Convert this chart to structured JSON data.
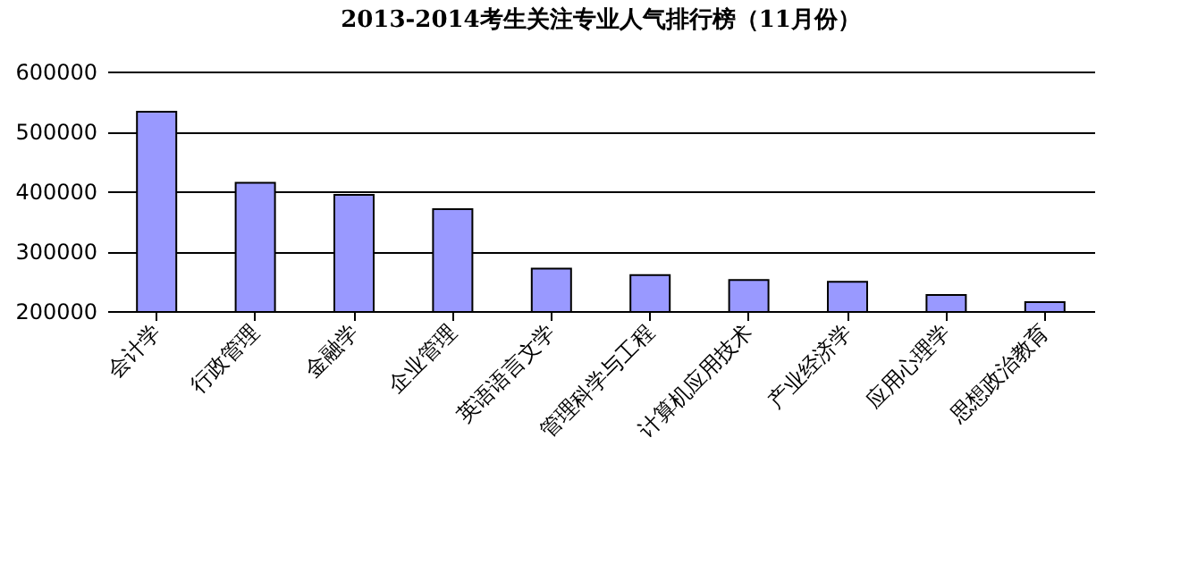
{
  "chart_data": {
    "type": "bar",
    "title": "2013-2014考生关注专业人气排行榜（11月份）",
    "categories": [
      "会计学",
      "行政管理",
      "金融学",
      "企业管理",
      "英语语言文学",
      "管理科学与工程",
      "计算机应用技术",
      "产业经济学",
      "应用心理学",
      "思想政治教育"
    ],
    "values": [
      533000,
      414000,
      394000,
      370000,
      271000,
      260000,
      252000,
      249000,
      227000,
      215000
    ],
    "color": "#9999ff",
    "ylim": [
      200000,
      600000
    ],
    "yticks": [
      200000,
      300000,
      400000,
      500000,
      600000
    ],
    "grid": "y"
  }
}
